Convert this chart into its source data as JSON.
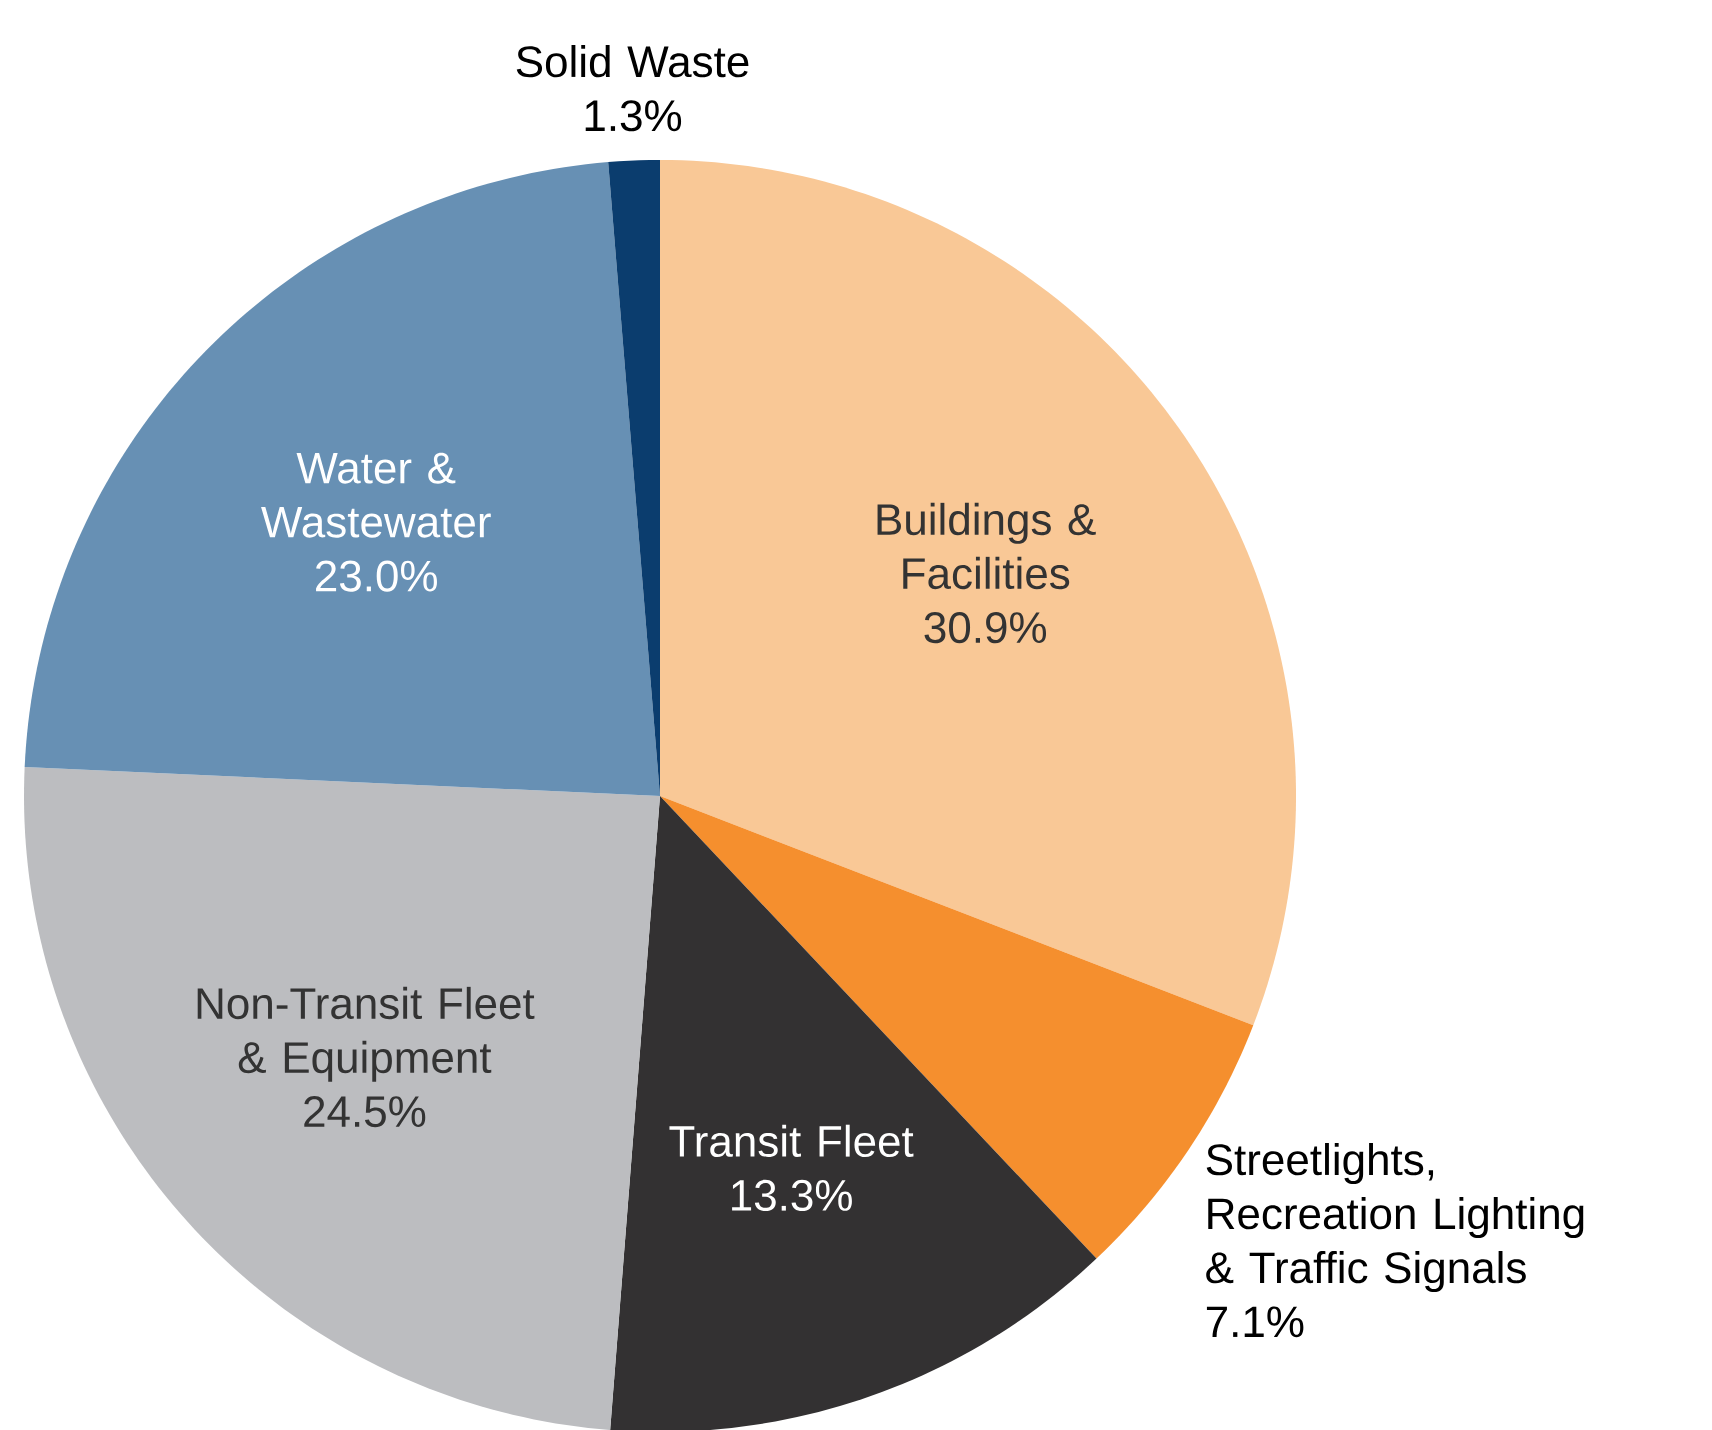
{
  "chart_data": {
    "type": "pie",
    "categories": [
      "Buildings & Facilities",
      "Streetlights, Recreation Lighting & Traffic Signals",
      "Transit Fleet",
      "Non-Transit Fleet & Equipment",
      "Water & Wastewater",
      "Solid Waste"
    ],
    "values": [
      30.9,
      7.1,
      13.3,
      24.5,
      23.0,
      1.3
    ],
    "value_labels": [
      "30.9%",
      "7.1%",
      "13.3%",
      "24.5%",
      "23.0%",
      "1.3%"
    ],
    "colors": [
      "#f9c896",
      "#f58f2e",
      "#333132",
      "#bcbdc0",
      "#6790b4",
      "#0b3d6e"
    ]
  }
}
